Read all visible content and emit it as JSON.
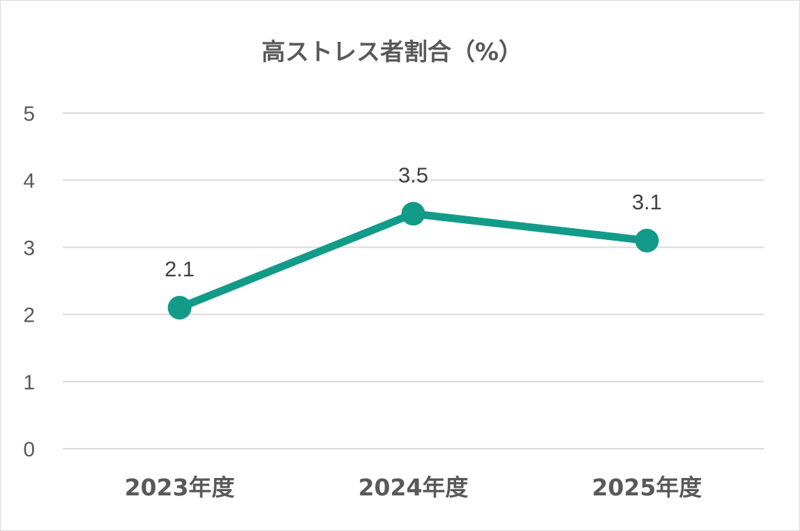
{
  "chart_data": {
    "type": "line",
    "title": "高ストレス者割合（%）",
    "categories": [
      "2023年度",
      "2024年度",
      "2025年度"
    ],
    "series": [
      {
        "values": [
          2.1,
          3.5,
          3.1
        ],
        "color": "#139b89"
      }
    ],
    "data_labels": [
      "2.1",
      "3.5",
      "3.1"
    ],
    "yticks": [
      "0",
      "1",
      "2",
      "3",
      "4",
      "5"
    ],
    "ylim": [
      0,
      5
    ],
    "grid": true,
    "legend": "none",
    "gridline_color": "#d9d9d9",
    "text_color": "#595959"
  }
}
